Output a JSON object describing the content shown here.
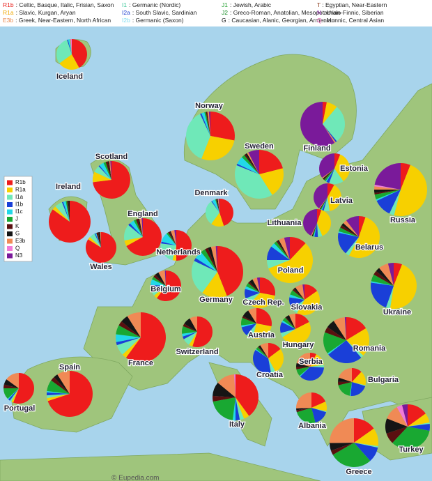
{
  "header": {
    "key": [
      {
        "code": "R1b",
        "desc": ": Celtic, Basque, Italic, Frisian, Saxon",
        "color": "#e8211d"
      },
      {
        "code": "R1a",
        "desc": ": Slavic, Kurgan, Aryan",
        "color": "#f0a800"
      },
      {
        "code": "E3b",
        "desc": ": Greek, Near-Eastern, North African",
        "color": "#e8874a"
      },
      {
        "code": "I1",
        "desc": ": Germanic (Nordic)",
        "color": "#3cc79a"
      },
      {
        "code": "I2a",
        "desc": ": South Slavic, Sardinian",
        "color": "#1f3fd0"
      },
      {
        "code": "I2b",
        "desc": ": Germanic (Saxon)",
        "color": "#7fdcf0"
      },
      {
        "code": "J1",
        "desc": ": Jewish, Arabic",
        "color": "#22a030"
      },
      {
        "code": "J2",
        "desc": ": Greco-Roman, Anatolian, Mesopotamian",
        "color": "#118a20"
      },
      {
        "code": "G",
        "desc": ": Caucasian, Alanic, Georgian, Armenian",
        "color": "#111111"
      },
      {
        "code": "T",
        "desc": ": Egyptian, Near-Eastern",
        "color": "#8a3a1a"
      },
      {
        "code": "N",
        "desc": ": Uralo-Finnic, Siberian",
        "color": "#8a1fa8"
      },
      {
        "code": "Q",
        "desc": ": Hunnic, Central Asian",
        "color": "#e04aa8"
      }
    ]
  },
  "legend": {
    "items": [
      {
        "label": "R1b",
        "color": "#ee1c1c"
      },
      {
        "label": "R1a",
        "color": "#f7d000"
      },
      {
        "label": "I1a",
        "color": "#6fe8b8"
      },
      {
        "label": "I1b",
        "color": "#1a3fd8"
      },
      {
        "label": "I1c",
        "color": "#22d8e8"
      },
      {
        "label": "J",
        "color": "#19a832"
      },
      {
        "label": "K",
        "color": "#5a1010"
      },
      {
        "label": "G",
        "color": "#151515"
      },
      {
        "label": "E3b",
        "color": "#f08a55"
      },
      {
        "label": "Q",
        "color": "#f07ad8"
      },
      {
        "label": "N3",
        "color": "#7a1a9a"
      }
    ]
  },
  "countries": [
    {
      "name": "Iceland",
      "values": [
        42,
        23,
        30,
        1,
        2,
        0,
        0,
        0,
        1,
        1,
        0
      ]
    },
    {
      "name": "Norway",
      "values": [
        28,
        28,
        37,
        1,
        2,
        1,
        1,
        0,
        1,
        0,
        1
      ]
    },
    {
      "name": "Sweden",
      "values": [
        20,
        19,
        38,
        1,
        5,
        2,
        1,
        1,
        1,
        0,
        7
      ]
    },
    {
      "name": "Finland",
      "values": [
        3,
        8,
        28,
        1,
        0,
        0,
        0,
        0,
        1,
        0,
        59
      ]
    },
    {
      "name": "Scotland",
      "values": [
        73,
        9,
        6,
        1,
        4,
        2,
        2,
        1,
        1,
        0,
        1
      ]
    },
    {
      "name": "Ireland",
      "values": [
        85,
        3,
        6,
        1,
        2,
        1,
        1,
        1,
        0,
        0,
        0
      ]
    },
    {
      "name": "Denmark",
      "values": [
        45,
        15,
        30,
        1,
        4,
        1,
        1,
        1,
        1,
        0,
        1
      ]
    },
    {
      "name": "England",
      "values": [
        67,
        5,
        14,
        2,
        4,
        2,
        2,
        1,
        2,
        0,
        1
      ]
    },
    {
      "name": "Wales",
      "values": [
        84,
        3,
        6,
        1,
        1,
        0,
        2,
        2,
        1,
        0,
        0
      ]
    },
    {
      "name": "Netherlands",
      "values": [
        50,
        4,
        23,
        2,
        10,
        2,
        2,
        1,
        4,
        0,
        2
      ]
    },
    {
      "name": "Belgium",
      "values": [
        60,
        4,
        10,
        2,
        6,
        3,
        3,
        4,
        7,
        0,
        1
      ]
    },
    {
      "name": "Germany",
      "values": [
        44,
        16,
        22,
        2,
        5,
        3,
        2,
        2,
        3,
        0,
        1
      ]
    },
    {
      "name": "France",
      "values": [
        60,
        3,
        7,
        2,
        5,
        6,
        3,
        5,
        9,
        0,
        0
      ]
    },
    {
      "name": "Switzerland",
      "values": [
        55,
        4,
        8,
        3,
        3,
        8,
        3,
        8,
        8,
        0,
        0
      ]
    },
    {
      "name": "Spain",
      "values": [
        70,
        2,
        2,
        2,
        1,
        8,
        3,
        3,
        9,
        0,
        0
      ]
    },
    {
      "name": "Portugal",
      "values": [
        56,
        2,
        2,
        2,
        1,
        12,
        4,
        6,
        15,
        0,
        0
      ]
    },
    {
      "name": "Italy",
      "values": [
        40,
        4,
        3,
        3,
        2,
        20,
        4,
        10,
        13,
        1,
        0
      ]
    },
    {
      "name": "Poland",
      "values": [
        12,
        57,
        6,
        10,
        3,
        2,
        1,
        1,
        4,
        0,
        4
      ]
    },
    {
      "name": "Czech Rep.",
      "values": [
        28,
        34,
        7,
        10,
        3,
        4,
        2,
        4,
        5,
        0,
        3
      ]
    },
    {
      "name": "Slovakia",
      "values": [
        15,
        42,
        7,
        12,
        3,
        5,
        2,
        2,
        8,
        0,
        2
      ]
    },
    {
      "name": "Austria",
      "values": [
        28,
        26,
        7,
        10,
        2,
        8,
        2,
        8,
        9,
        0,
        0
      ]
    },
    {
      "name": "Hungary",
      "values": [
        18,
        50,
        5,
        12,
        2,
        4,
        1,
        4,
        7,
        0,
        0
      ]
    },
    {
      "name": "Croatia",
      "values": [
        15,
        28,
        5,
        38,
        1,
        3,
        1,
        2,
        9,
        0,
        0
      ]
    },
    {
      "name": "Serbia",
      "values": [
        7,
        15,
        3,
        35,
        1,
        8,
        3,
        4,
        20,
        0,
        0
      ]
    },
    {
      "name": "Romania",
      "values": [
        16,
        20,
        2,
        25,
        1,
        15,
        4,
        6,
        8,
        0,
        1
      ]
    },
    {
      "name": "Bulgaria",
      "values": [
        12,
        17,
        1,
        22,
        1,
        19,
        4,
        5,
        20,
        0,
        0
      ]
    },
    {
      "name": "Albania",
      "values": [
        18,
        10,
        1,
        16,
        0,
        24,
        2,
        2,
        25,
        0,
        0
      ]
    },
    {
      "name": "Greece",
      "values": [
        15,
        12,
        1,
        10,
        0,
        28,
        3,
        5,
        25,
        0,
        0
      ]
    },
    {
      "name": "Turkey",
      "values": [
        15,
        7,
        1,
        5,
        0,
        34,
        8,
        11,
        11,
        4,
        4
      ]
    },
    {
      "name": "Ukraine",
      "values": [
        6,
        47,
        3,
        22,
        1,
        5,
        3,
        3,
        7,
        0,
        4
      ]
    },
    {
      "name": "Belarus",
      "values": [
        5,
        51,
        3,
        17,
        1,
        3,
        2,
        2,
        3,
        0,
        10
      ]
    },
    {
      "name": "Russia",
      "values": [
        6,
        48,
        3,
        11,
        1,
        3,
        1,
        2,
        2,
        1,
        22
      ]
    },
    {
      "name": "Estonia",
      "values": [
        6,
        33,
        15,
        3,
        1,
        2,
        1,
        1,
        1,
        0,
        34
      ]
    },
    {
      "name": "Latvia",
      "values": [
        8,
        40,
        7,
        2,
        1,
        1,
        0,
        1,
        1,
        0,
        40
      ]
    },
    {
      "name": "Lithuania",
      "values": [
        5,
        38,
        5,
        4,
        1,
        1,
        0,
        1,
        1,
        0,
        42
      ]
    }
  ],
  "credit": "© Eupedia.com"
}
